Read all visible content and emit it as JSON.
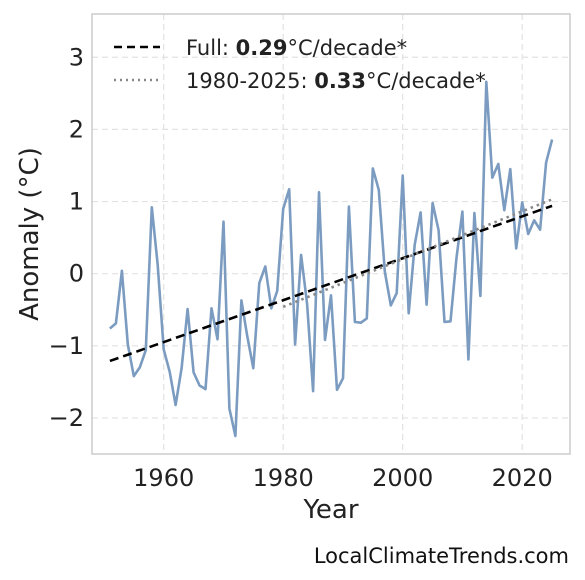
{
  "chart_data": {
    "type": "line",
    "xlabel": "Year",
    "ylabel": "Anomaly (°C)",
    "xlim": [
      1948,
      2028
    ],
    "ylim": [
      -2.5,
      3.6
    ],
    "xticks": [
      1960,
      1980,
      2000,
      2020
    ],
    "yticks": [
      -2,
      -1,
      0,
      1,
      2,
      3
    ],
    "grid": true,
    "legend_position": "top-left",
    "series": [
      {
        "color": "#7b9cc0",
        "x": [
          1951,
          1952,
          1953,
          1954,
          1955,
          1956,
          1957,
          1958,
          1959,
          1960,
          1961,
          1962,
          1963,
          1964,
          1965,
          1966,
          1967,
          1968,
          1969,
          1970,
          1971,
          1972,
          1973,
          1974,
          1975,
          1976,
          1977,
          1978,
          1979,
          1980,
          1981,
          1982,
          1983,
          1984,
          1985,
          1986,
          1987,
          1988,
          1989,
          1990,
          1991,
          1992,
          1993,
          1994,
          1995,
          1996,
          1997,
          1998,
          1999,
          2000,
          2001,
          2002,
          2003,
          2004,
          2005,
          2006,
          2007,
          2008,
          2009,
          2010,
          2011,
          2012,
          2013,
          2014,
          2015,
          2016,
          2017,
          2018,
          2019,
          2020,
          2021,
          2022,
          2023,
          2024,
          2025
        ],
        "values": [
          -0.76,
          -0.69,
          0.04,
          -0.98,
          -1.42,
          -1.3,
          -1.06,
          0.92,
          0.12,
          -1.05,
          -1.36,
          -1.82,
          -1.31,
          -0.49,
          -1.37,
          -1.55,
          -1.6,
          -0.48,
          -0.91,
          0.72,
          -1.87,
          -2.25,
          -0.37,
          -0.87,
          -1.31,
          -0.13,
          0.1,
          -0.48,
          -0.24,
          0.9,
          1.17,
          -0.98,
          0.26,
          -0.42,
          -1.63,
          1.13,
          -0.92,
          -0.3,
          -1.61,
          -1.45,
          0.93,
          -0.67,
          -0.68,
          -0.62,
          1.46,
          1.16,
          0.03,
          -0.44,
          -0.27,
          1.36,
          -0.55,
          0.4,
          0.85,
          -0.43,
          0.98,
          0.6,
          -0.67,
          -0.66,
          0.22,
          0.86,
          -1.19,
          0.84,
          -0.31,
          2.66,
          1.33,
          1.52,
          0.88,
          1.45,
          0.35,
          0.99,
          0.55,
          0.74,
          0.61,
          1.54,
          1.86
        ]
      }
    ],
    "trends": [
      {
        "style": "dashed",
        "color": "#000000",
        "x": [
          1951,
          2025
        ],
        "values": [
          -1.21,
          0.94
        ],
        "legend_prefix": "Full: ",
        "legend_rate": "0.29",
        "legend_unit": "°C/decade*"
      },
      {
        "style": "dotted",
        "color": "#888888",
        "x": [
          1980,
          2025
        ],
        "values": [
          -0.46,
          1.03
        ],
        "legend_prefix": "1980-2025: ",
        "legend_rate": "0.33",
        "legend_unit": "°C/decade*"
      }
    ]
  },
  "credit": "LocalClimateTrends.com"
}
